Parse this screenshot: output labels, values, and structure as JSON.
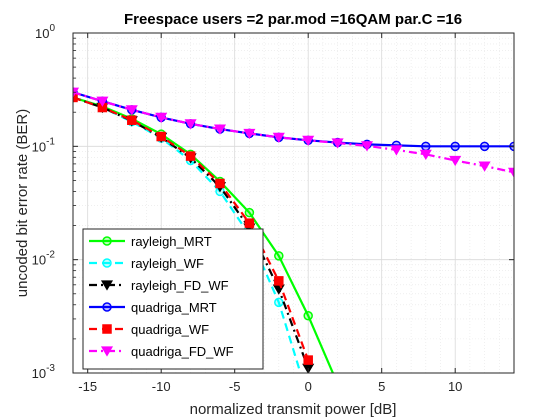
{
  "chart_data": {
    "type": "line",
    "title": "Freespace users =2 par.mod =16QAM par.C =16",
    "xlabel": "normalized transmit power [dB]",
    "ylabel": "uncoded bit error rate (BER)",
    "xlim": [
      -16,
      14
    ],
    "ylim": [
      0.001,
      1
    ],
    "yscale": "log",
    "grid": true,
    "minor_grid": true,
    "legend_position": "bottom-left",
    "x_ticks": [
      -15,
      -10,
      -5,
      0,
      5,
      10
    ],
    "x_tick_labels": [
      "-15",
      "-10",
      "-5",
      "0",
      "5",
      "10"
    ],
    "y_ticks": [
      0.001,
      0.01,
      0.1,
      1
    ],
    "y_tick_labels": [
      {
        "base": "10",
        "exp": "-3"
      },
      {
        "base": "10",
        "exp": "-2"
      },
      {
        "base": "10",
        "exp": "-1"
      },
      {
        "base": "10",
        "exp": "0"
      }
    ],
    "x": [
      -16,
      -14,
      -12,
      -10,
      -8,
      -6,
      -4,
      -2,
      0,
      2,
      4,
      6,
      8,
      10,
      12,
      14
    ],
    "series": [
      {
        "name": "rayleigh_MRT",
        "color": "#00ff00",
        "dash": "solid",
        "marker": "circle",
        "values": [
          0.27,
          0.225,
          0.175,
          0.128,
          0.085,
          0.049,
          0.026,
          0.0108,
          0.0032,
          0.0008,
          null,
          null,
          null,
          null,
          null,
          null
        ]
      },
      {
        "name": "rayleigh_WF",
        "color": "#00ffff",
        "dash": "dashed",
        "marker": "circle",
        "values": [
          0.27,
          0.22,
          0.165,
          0.118,
          0.075,
          0.04,
          0.0165,
          0.0042,
          0.0006,
          null,
          null,
          null,
          null,
          null,
          null,
          null
        ]
      },
      {
        "name": "rayleigh_FD_WF",
        "color": "#000000",
        "dash": "dashdot",
        "marker": "triangle-down",
        "values": [
          0.27,
          0.22,
          0.168,
          0.12,
          0.079,
          0.044,
          0.019,
          0.0055,
          0.0011,
          null,
          null,
          null,
          null,
          null,
          null,
          null
        ]
      },
      {
        "name": "quadriga_MRT",
        "color": "#0000ff",
        "dash": "solid",
        "marker": "circle",
        "values": [
          0.3,
          0.25,
          0.21,
          0.18,
          0.158,
          0.142,
          0.13,
          0.12,
          0.113,
          0.108,
          0.104,
          0.102,
          0.1,
          0.1,
          0.1,
          0.1
        ]
      },
      {
        "name": "quadriga_WF",
        "color": "#ff0000",
        "dash": "dashed",
        "marker": "square",
        "values": [
          0.27,
          0.22,
          0.17,
          0.122,
          0.082,
          0.047,
          0.021,
          0.0065,
          0.0013,
          null,
          null,
          null,
          null,
          null,
          null,
          null
        ]
      },
      {
        "name": "quadriga_FD_WF",
        "color": "#ff00ff",
        "dash": "dashdot",
        "marker": "triangle-down",
        "values": [
          0.3,
          0.25,
          0.21,
          0.18,
          0.158,
          0.142,
          0.13,
          0.12,
          0.113,
          0.107,
          0.101,
          0.093,
          0.085,
          0.075,
          0.067,
          0.059
        ]
      }
    ]
  }
}
